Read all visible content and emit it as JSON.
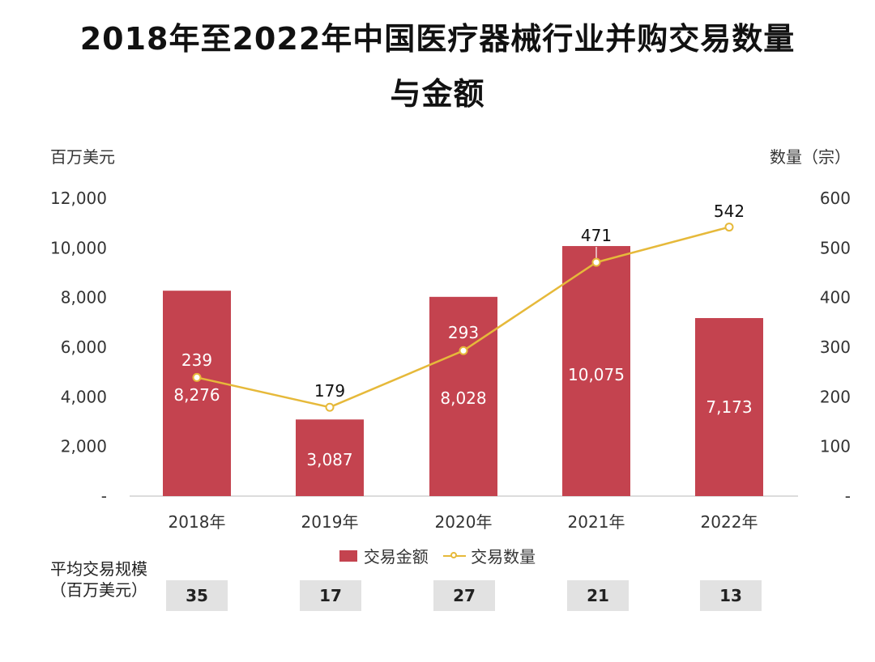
{
  "title_line1": "2018年至2022年中国医疗器械行业并购交易数量",
  "title_line2": "与金额",
  "left_axis_unit": "百万美元",
  "right_axis_unit": "数量（宗）",
  "colors": {
    "bar": "#c4434f",
    "line": "#e6b93a",
    "avg_box": "#e2e2e2"
  },
  "chart_data": {
    "type": "bar",
    "categories": [
      "2018年",
      "2019年",
      "2020年",
      "2021年",
      "2022年"
    ],
    "series": [
      {
        "name": "交易金额",
        "type": "bar",
        "axis": "left",
        "values": [
          8276,
          3087,
          8028,
          10075,
          7173
        ],
        "labels": [
          "8,276",
          "3,087",
          "8,028",
          "10,075",
          "7,173"
        ]
      },
      {
        "name": "交易数量",
        "type": "line",
        "axis": "right",
        "values": [
          239,
          179,
          293,
          471,
          542
        ],
        "labels": [
          "239",
          "179",
          "293",
          "471",
          "542"
        ]
      }
    ],
    "left_axis": {
      "ylim": [
        0,
        12000
      ],
      "ticks": [
        "-",
        "2,000",
        "4,000",
        "6,000",
        "8,000",
        "10,000",
        "12,000"
      ]
    },
    "right_axis": {
      "ylim": [
        0,
        600
      ],
      "ticks": [
        "-",
        "100",
        "200",
        "300",
        "400",
        "500",
        "600"
      ]
    },
    "grid": false,
    "legend_position": "bottom"
  },
  "avg_size": {
    "label": "平均交易规模（百万美元）",
    "values": [
      "35",
      "17",
      "27",
      "21",
      "13"
    ]
  }
}
